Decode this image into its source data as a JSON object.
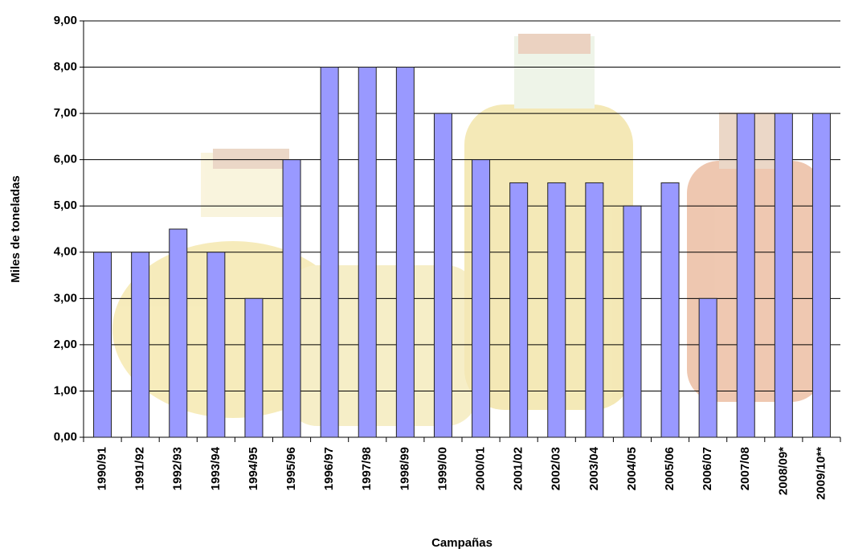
{
  "chart_data": {
    "type": "bar",
    "x_label": "Campañas",
    "y_label": "Miles de toneladas",
    "categories": [
      "1990/91",
      "1991/92",
      "1992/93",
      "1993/94",
      "1994/95",
      "1995/96",
      "1996/97",
      "1997/98",
      "1998/99",
      "1999/00",
      "2000/01",
      "2001/02",
      "2002/03",
      "2003/04",
      "2004/05",
      "2005/06",
      "2006/07",
      "2007/08",
      "2008/09*",
      "2009/10**"
    ],
    "values": [
      4,
      4,
      4.5,
      4,
      3,
      6,
      8,
      8,
      8,
      7,
      6,
      5.5,
      5.5,
      5.5,
      5,
      5.5,
      3,
      7,
      7,
      7
    ],
    "color": "#9999ff",
    "ylim": [
      0,
      9
    ],
    "yticks": [
      {
        "value": 0,
        "label": "0,00"
      },
      {
        "value": 1,
        "label": "1,00"
      },
      {
        "value": 2,
        "label": "2,00"
      },
      {
        "value": 3,
        "label": "3,00"
      },
      {
        "value": 4,
        "label": "4,00"
      },
      {
        "value": 5,
        "label": "5,00"
      },
      {
        "value": 6,
        "label": "6,00"
      },
      {
        "value": 7,
        "label": "7,00"
      },
      {
        "value": 8,
        "label": "8,00"
      },
      {
        "value": 9,
        "label": "9,00"
      }
    ],
    "grid": true
  }
}
